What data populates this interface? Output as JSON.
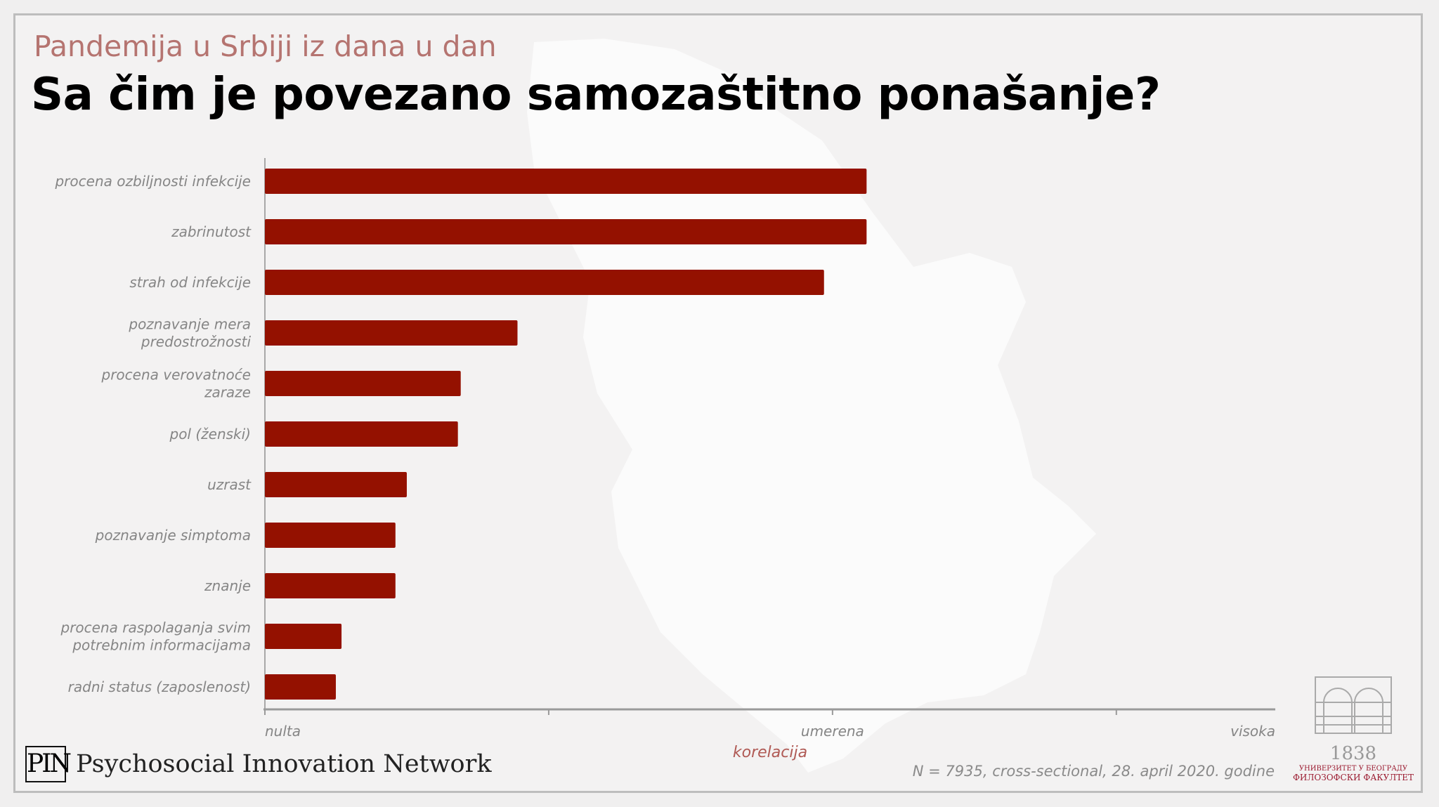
{
  "header": {
    "subtitle": "Pandemija u Srbiji iz dana u dan",
    "title": "Sa čim je povezano samozaštitno ponašanje?"
  },
  "chart_data": {
    "type": "bar",
    "orientation": "horizontal",
    "categories": [
      "procena ozbiljnosti infekcije",
      "zabrinutost",
      "strah od infekcije",
      "poznavanje mera predostrožnosti",
      "procena verovatnoće zaraze",
      "pol (ženski)",
      "uzrast",
      "poznavanje simptoma",
      "znanje",
      "procena raspolaganja svim potrebnim informacijama",
      "radni status (zaposlenost)"
    ],
    "category_lines": [
      [
        "procena ozbiljnosti infekcije"
      ],
      [
        "zabrinutost"
      ],
      [
        "strah od infekcije"
      ],
      [
        "poznavanje mera",
        "predostrožnosti"
      ],
      [
        "procena verovatnoće",
        "zaraze"
      ],
      [
        "pol (ženski)"
      ],
      [
        "uzrast"
      ],
      [
        "poznavanje simptoma"
      ],
      [
        "znanje"
      ],
      [
        "procena raspolaganja svim",
        "potrebnim informacijama"
      ],
      [
        "radni status (zaposlenost)"
      ]
    ],
    "values": [
      0.212,
      0.212,
      0.197,
      0.089,
      0.069,
      0.068,
      0.05,
      0.046,
      0.046,
      0.027,
      0.025
    ],
    "xlim": [
      0,
      0.356
    ],
    "xticks": [
      0,
      0.1,
      0.2,
      0.3
    ],
    "xtick_labels": [
      {
        "value": 0,
        "label": "nulta"
      },
      {
        "value": 0.2,
        "label": "umerena"
      },
      {
        "value": 0.356,
        "label": "visoka"
      }
    ],
    "xlabel": "korelacija",
    "bar_color": "#941100",
    "grid": false
  },
  "footer": {
    "note": "N = 7935, cross-sectional, 28. april 2020. godine",
    "org_logo": "PIN",
    "org_name": "Psychosocial Innovation Network",
    "university": {
      "year": "1838",
      "line1": "УНИВЕРЗИТЕТ У БЕОГРАДУ",
      "line2": "ФИЛОЗОФСКИ ФАКУЛТЕТ"
    }
  }
}
